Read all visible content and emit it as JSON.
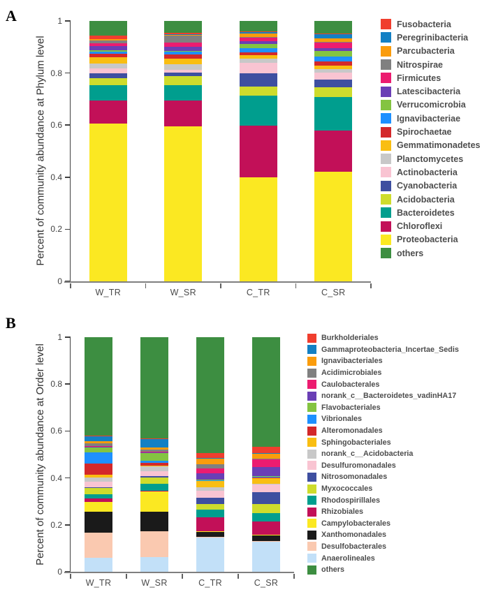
{
  "panels": {
    "a": "A",
    "b": "B"
  },
  "chart_data": [
    {
      "id": "A",
      "type": "bar",
      "stacked": true,
      "title": "",
      "xlabel": "",
      "ylabel": "Percent of community abundance at Phylum level",
      "ylim": [
        0,
        1
      ],
      "yticks": [
        "0",
        "0.2",
        "0.4",
        "0.6",
        "0.8",
        "1"
      ],
      "grid": false,
      "legend_position": "right",
      "stack_order_note": "bottom-to-top: Proteobacteria up to Fusobacteria, with 'others' as topmost segment",
      "categories": [
        "W_TR",
        "W_SR",
        "C_TR",
        "C_SR"
      ],
      "series": [
        {
          "name": "Fusobacteria",
          "color": "#F03E2E",
          "values": [
            0.013,
            0.006,
            0.002,
            0.003
          ]
        },
        {
          "name": "Peregrinibacteria",
          "color": "#1380C4",
          "values": [
            0.002,
            0.002,
            0.004,
            0.018
          ]
        },
        {
          "name": "Parcubacteria",
          "color": "#FA9C0C",
          "values": [
            0.003,
            0.003,
            0.015,
            0.013
          ]
        },
        {
          "name": "Nitrospirae",
          "color": "#808080",
          "values": [
            0.013,
            0.025,
            0.002,
            0.003
          ]
        },
        {
          "name": "Firmicutes",
          "color": "#EC1C70",
          "values": [
            0.009,
            0.017,
            0.013,
            0.02
          ]
        },
        {
          "name": "Latescibacteria",
          "color": "#6A3FB5",
          "values": [
            0.018,
            0.016,
            0.011,
            0.011
          ]
        },
        {
          "name": "Verrucomicrobia",
          "color": "#84C441",
          "values": [
            0.003,
            0.003,
            0.016,
            0.022
          ]
        },
        {
          "name": "Ignavibacteriae",
          "color": "#1E90FF",
          "values": [
            0.01,
            0.01,
            0.016,
            0.019
          ]
        },
        {
          "name": "Spirochaetae",
          "color": "#D3282A",
          "values": [
            0.013,
            0.017,
            0.012,
            0.017
          ]
        },
        {
          "name": "Gemmatimonadetes",
          "color": "#F9BE12",
          "values": [
            0.024,
            0.021,
            0.012,
            0.011
          ]
        },
        {
          "name": "Planctomycetes",
          "color": "#C8C8C8",
          "values": [
            0.018,
            0.021,
            0.018,
            0.014
          ]
        },
        {
          "name": "Actinobacteria",
          "color": "#F9C4D2",
          "values": [
            0.02,
            0.013,
            0.04,
            0.028
          ]
        },
        {
          "name": "Cyanobacteria",
          "color": "#3E4FA0",
          "values": [
            0.017,
            0.013,
            0.05,
            0.028
          ]
        },
        {
          "name": "Acidobacteria",
          "color": "#CEDC2C",
          "values": [
            0.028,
            0.035,
            0.035,
            0.038
          ]
        },
        {
          "name": "Bacteroidetes",
          "color": "#009E8E",
          "values": [
            0.058,
            0.057,
            0.115,
            0.13
          ]
        },
        {
          "name": "Chloroflexi",
          "color": "#C21058",
          "values": [
            0.09,
            0.1,
            0.198,
            0.158
          ]
        },
        {
          "name": "Proteobacteria",
          "color": "#FBE822",
          "values": [
            0.605,
            0.595,
            0.4,
            0.42
          ]
        },
        {
          "name": "others",
          "color": "#3D8E41",
          "values": [
            0.056,
            0.046,
            0.041,
            0.047
          ]
        }
      ]
    },
    {
      "id": "B",
      "type": "bar",
      "stacked": true,
      "title": "",
      "xlabel": "",
      "ylabel": "Percent of community abundance at Order level",
      "ylim": [
        0,
        1
      ],
      "yticks": [
        "0",
        "0.2",
        "0.4",
        "0.6",
        "0.8",
        "1"
      ],
      "grid": false,
      "legend_position": "right",
      "stack_order_note": "bottom-to-top: Anaerolineales up to Burkholderiales, with 'others' as topmost segment",
      "categories": [
        "W_TR",
        "W_SR",
        "C_TR",
        "C_SR"
      ],
      "series": [
        {
          "name": "Burkholderiales",
          "color": "#F03E2E",
          "values": [
            0.004,
            0.004,
            0.02,
            0.027
          ]
        },
        {
          "name": "Gammaproteobacteria_Incertae_Sedis",
          "color": "#1380C4",
          "values": [
            0.021,
            0.035,
            0.003,
            0.003
          ]
        },
        {
          "name": "Ignavibacteriales",
          "color": "#FA9C0C",
          "values": [
            0.009,
            0.008,
            0.023,
            0.022
          ]
        },
        {
          "name": "Acidimicrobiales",
          "color": "#808080",
          "values": [
            0.012,
            0.011,
            0.019,
            0.004
          ]
        },
        {
          "name": "Caulobacterales",
          "color": "#EC1C70",
          "values": [
            0.003,
            0.003,
            0.02,
            0.032
          ]
        },
        {
          "name": "norank_c__Bacteroidetes_vadinHA17",
          "color": "#6A3FB5",
          "values": [
            0.003,
            0.003,
            0.027,
            0.039
          ]
        },
        {
          "name": "Flavobacteriales",
          "color": "#84C441",
          "values": [
            0.019,
            0.032,
            0.003,
            0.003
          ]
        },
        {
          "name": "Vibrionales",
          "color": "#1E90FF",
          "values": [
            0.049,
            0.01,
            0.002,
            0.002
          ]
        },
        {
          "name": "Alteromonadales",
          "color": "#D3282A",
          "values": [
            0.048,
            0.01,
            0.002,
            0.002
          ]
        },
        {
          "name": "Sphingobacteriales",
          "color": "#F9BE12",
          "values": [
            0.01,
            0.004,
            0.027,
            0.025
          ]
        },
        {
          "name": "norank_c__Acidobacteria",
          "color": "#C8C8C8",
          "values": [
            0.02,
            0.022,
            0.015,
            0.004
          ]
        },
        {
          "name": "Desulfuromonadales",
          "color": "#F9C4D2",
          "values": [
            0.022,
            0.02,
            0.03,
            0.033
          ]
        },
        {
          "name": "Nitrosomonadales",
          "color": "#3E4FA0",
          "values": [
            0.004,
            0.004,
            0.027,
            0.051
          ]
        },
        {
          "name": "Myxococcales",
          "color": "#CEDC2C",
          "values": [
            0.026,
            0.028,
            0.022,
            0.037
          ]
        },
        {
          "name": "Rhodospirillales",
          "color": "#009E8E",
          "values": [
            0.02,
            0.03,
            0.032,
            0.037
          ]
        },
        {
          "name": "Rhizobiales",
          "color": "#C21058",
          "values": [
            0.013,
            0.004,
            0.06,
            0.056
          ]
        },
        {
          "name": "Campylobacterales",
          "color": "#FBE822",
          "values": [
            0.042,
            0.086,
            0.003,
            0.003
          ]
        },
        {
          "name": "Xanthomonadales",
          "color": "#1A1A1A",
          "values": [
            0.09,
            0.084,
            0.022,
            0.022
          ]
        },
        {
          "name": "Desulfobacterales",
          "color": "#FAC9B0",
          "values": [
            0.107,
            0.109,
            0.003,
            0.003
          ]
        },
        {
          "name": "Anaerolineales",
          "color": "#C2E0F8",
          "values": [
            0.059,
            0.062,
            0.145,
            0.129
          ]
        },
        {
          "name": "others",
          "color": "#3D8E41",
          "values": [
            0.419,
            0.431,
            0.495,
            0.466
          ]
        }
      ]
    }
  ]
}
